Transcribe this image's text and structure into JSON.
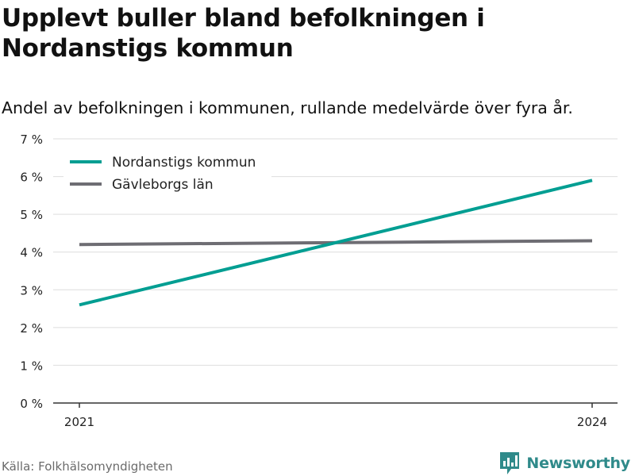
{
  "title": "Upplevt buller bland befolkningen i Nordanstigs kommun",
  "subtitle": "Andel av befolkningen i kommunen, rullande medelvärde över fyra år.",
  "source": "Källa: Folkhälsomyndigheten",
  "brand": {
    "name": "Newsworthy",
    "icon": "newsworthy-logo-icon",
    "color": "#2f8a8a"
  },
  "chart_data": {
    "type": "line",
    "x": [
      "2021",
      "2024"
    ],
    "series": [
      {
        "name": "Nordanstigs kommun",
        "values": [
          2.6,
          5.9
        ],
        "color": "#009e92"
      },
      {
        "name": "Gävleborgs län",
        "values": [
          4.2,
          4.3
        ],
        "color": "#6e6d73"
      }
    ],
    "ylim": [
      0,
      7
    ],
    "yticks": [
      0,
      1,
      2,
      3,
      4,
      5,
      6,
      7
    ],
    "ytick_labels": [
      "0 %",
      "1 %",
      "2 %",
      "3 %",
      "4 %",
      "5 %",
      "6 %",
      "7 %"
    ],
    "xtick_labels": [
      "2021",
      "2024"
    ],
    "grid": true,
    "legend_position": "top-left",
    "xlabel": "",
    "ylabel": ""
  }
}
